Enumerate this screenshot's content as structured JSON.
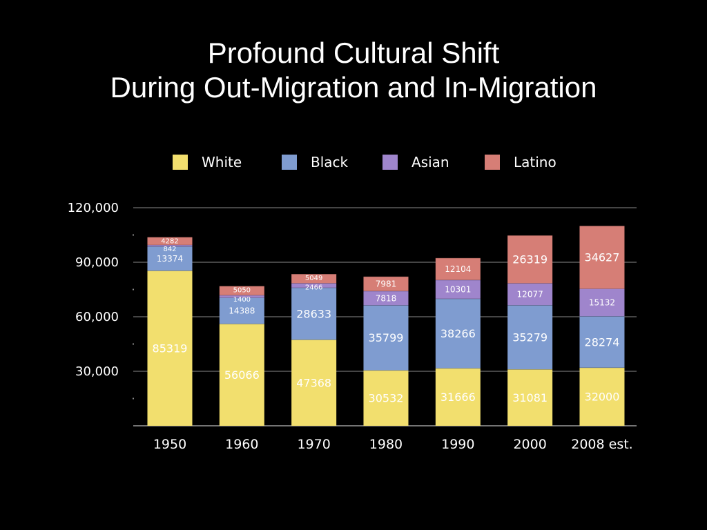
{
  "slide": {
    "title_line1": "Profound Cultural Shift",
    "title_line2": "During Out-Migration and In-Migration"
  },
  "chart_data": {
    "type": "bar",
    "stacked": true,
    "categories": [
      "1950",
      "1960",
      "1970",
      "1980",
      "1990",
      "2000",
      "2008 est."
    ],
    "series": [
      {
        "name": "White",
        "color": "#f2df6e",
        "values": [
          85319,
          56066,
          47368,
          30532,
          31666,
          31081,
          32000
        ]
      },
      {
        "name": "Black",
        "color": "#7f9cd0",
        "values": [
          13374,
          14388,
          28633,
          35799,
          38266,
          35279,
          28274
        ]
      },
      {
        "name": "Asian",
        "color": "#9f85cc",
        "values": [
          842,
          1400,
          2466,
          7818,
          10301,
          12077,
          15132
        ]
      },
      {
        "name": "Latino",
        "color": "#d67e76",
        "values": [
          4282,
          5050,
          5049,
          7981,
          12104,
          26319,
          34627
        ]
      }
    ],
    "ylim": [
      0,
      120000
    ],
    "y_ticks": [
      {
        "value": 30000,
        "label": "30,000"
      },
      {
        "value": 60000,
        "label": "60,000"
      },
      {
        "value": 90000,
        "label": "90,000"
      },
      {
        "value": 120000,
        "label": "120,000"
      }
    ],
    "grid": true,
    "legend": "top",
    "data_labels": true
  }
}
